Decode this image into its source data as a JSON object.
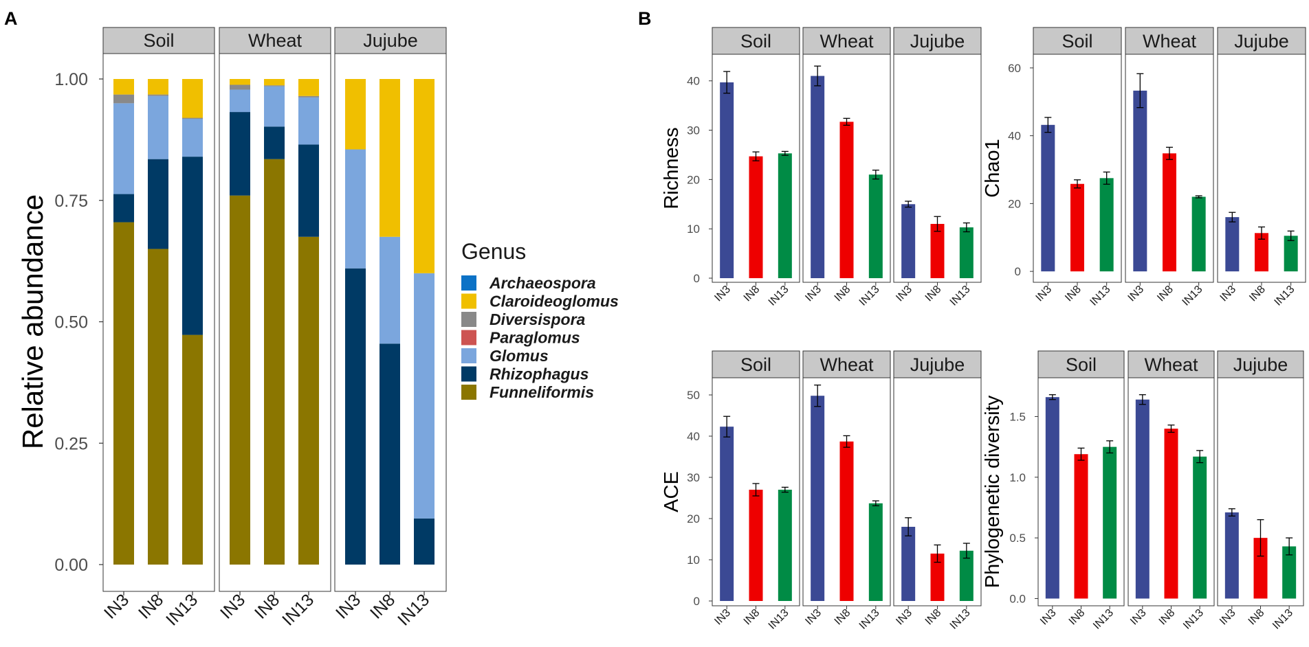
{
  "panel_labels": [
    "A",
    "B"
  ],
  "colors": {
    "Archaeospora": "#0c72c6",
    "Claroideoglomus": "#f0bf00",
    "Diversispora": "#898989",
    "Paraglomus": "#cd5452",
    "Glomus": "#7ba6dd",
    "Rhizophagus": "#003a65",
    "Funneliformis": "#8b7600",
    "IN3": "#3b4994",
    "IN8": "#ee0000",
    "IN13": "#008b45",
    "strip_fill": "#c8c8c8"
  },
  "chart_data": [
    {
      "id": "A",
      "type": "bar",
      "stacked": true,
      "ylabel": "Relative abundance",
      "ylim": [
        0,
        1
      ],
      "yticks": [
        "0.00",
        "0.25",
        "0.50",
        "0.75",
        "1.00"
      ],
      "facets": [
        "Soil",
        "Wheat",
        "Jujube"
      ],
      "categories": [
        "IN3",
        "IN8",
        "IN13"
      ],
      "legend_title": "Genus",
      "legend": [
        "Archaeospora",
        "Claroideoglomus",
        "Diversispora",
        "Paraglomus",
        "Glomus",
        "Rhizophagus",
        "Funneliformis"
      ],
      "stack_order": [
        "Funneliformis",
        "Rhizophagus",
        "Glomus",
        "Paraglomus",
        "Diversispora",
        "Claroideoglomus",
        "Archaeospora"
      ],
      "values": {
        "Soil": {
          "IN3": {
            "Funneliformis": 0.705,
            "Rhizophagus": 0.058,
            "Glomus": 0.187,
            "Paraglomus": 0.0,
            "Diversispora": 0.018,
            "Claroideoglomus": 0.032,
            "Archaeospora": 0.0
          },
          "IN8": {
            "Funneliformis": 0.65,
            "Rhizophagus": 0.185,
            "Glomus": 0.13,
            "Paraglomus": 0.0,
            "Diversispora": 0.003,
            "Claroideoglomus": 0.032,
            "Archaeospora": 0.0
          },
          "IN13": {
            "Funneliformis": 0.473,
            "Rhizophagus": 0.367,
            "Glomus": 0.078,
            "Paraglomus": 0.0,
            "Diversispora": 0.002,
            "Claroideoglomus": 0.08,
            "Archaeospora": 0.0
          }
        },
        "Wheat": {
          "IN3": {
            "Funneliformis": 0.76,
            "Rhizophagus": 0.172,
            "Glomus": 0.046,
            "Paraglomus": 0.0,
            "Diversispora": 0.01,
            "Claroideoglomus": 0.012,
            "Archaeospora": 0.0
          },
          "IN8": {
            "Funneliformis": 0.835,
            "Rhizophagus": 0.067,
            "Glomus": 0.083,
            "Paraglomus": 0.0,
            "Diversispora": 0.002,
            "Claroideoglomus": 0.013,
            "Archaeospora": 0.0
          },
          "IN13": {
            "Funneliformis": 0.675,
            "Rhizophagus": 0.19,
            "Glomus": 0.097,
            "Paraglomus": 0.0,
            "Diversispora": 0.003,
            "Claroideoglomus": 0.035,
            "Archaeospora": 0.0
          }
        },
        "Jujube": {
          "IN3": {
            "Funneliformis": 0.0,
            "Rhizophagus": 0.61,
            "Glomus": 0.245,
            "Paraglomus": 0.0,
            "Diversispora": 0.0,
            "Claroideoglomus": 0.145,
            "Archaeospora": 0.0
          },
          "IN8": {
            "Funneliformis": 0.0,
            "Rhizophagus": 0.455,
            "Glomus": 0.22,
            "Paraglomus": 0.0,
            "Diversispora": 0.0,
            "Claroideoglomus": 0.325,
            "Archaeospora": 0.0
          },
          "IN13": {
            "Funneliformis": 0.0,
            "Rhizophagus": 0.095,
            "Glomus": 0.505,
            "Paraglomus": 0.0,
            "Diversispora": 0.0,
            "Claroideoglomus": 0.4,
            "Archaeospora": 0.0
          }
        }
      }
    },
    {
      "id": "B-richness",
      "type": "bar",
      "ylabel": "Richness",
      "ylim": [
        0,
        44
      ],
      "yticks": [
        0,
        10,
        20,
        30,
        40
      ],
      "facets": [
        "Soil",
        "Wheat",
        "Jujube"
      ],
      "categories": [
        "IN3",
        "IN8",
        "IN13"
      ],
      "values": {
        "Soil": [
          39.7,
          24.7,
          25.3
        ],
        "Wheat": [
          41.0,
          31.7,
          21.0
        ],
        "Jujube": [
          15.0,
          11.0,
          10.3
        ]
      },
      "errors": {
        "Soil": [
          2.2,
          0.9,
          0.4
        ],
        "Wheat": [
          2.0,
          0.7,
          0.9
        ],
        "Jujube": [
          0.6,
          1.5,
          0.9
        ]
      }
    },
    {
      "id": "B-chao1",
      "type": "bar",
      "ylabel": "Chao1",
      "ylim": [
        -2,
        62
      ],
      "yticks": [
        0,
        20,
        40,
        60
      ],
      "facets": [
        "Soil",
        "Wheat",
        "Jujube"
      ],
      "categories": [
        "IN3",
        "IN8",
        "IN13"
      ],
      "values": {
        "Soil": [
          43.2,
          25.8,
          27.5
        ],
        "Wheat": [
          53.3,
          34.8,
          22.0
        ],
        "Jujube": [
          16.0,
          11.3,
          10.5
        ]
      },
      "errors": {
        "Soil": [
          2.2,
          1.2,
          1.8
        ],
        "Wheat": [
          5.0,
          1.8,
          0.3
        ],
        "Jujube": [
          1.4,
          1.8,
          1.4
        ]
      }
    },
    {
      "id": "B-ace",
      "type": "bar",
      "ylabel": "ACE",
      "ylim": [
        0,
        53
      ],
      "yticks": [
        0,
        10,
        20,
        30,
        40,
        50
      ],
      "facets": [
        "Soil",
        "Wheat",
        "Jujube"
      ],
      "categories": [
        "IN3",
        "IN8",
        "IN13"
      ],
      "values": {
        "Soil": [
          42.3,
          27.0,
          27.0
        ],
        "Wheat": [
          49.8,
          38.7,
          23.7
        ],
        "Jujube": [
          18.0,
          11.5,
          12.2
        ]
      },
      "errors": {
        "Soil": [
          2.5,
          1.5,
          0.6
        ],
        "Wheat": [
          2.6,
          1.4,
          0.6
        ],
        "Jujube": [
          2.2,
          2.1,
          1.8
        ]
      }
    },
    {
      "id": "B-pd",
      "type": "bar",
      "ylabel": "Phylogenetic diversity",
      "ylim": [
        -0.02,
        1.78
      ],
      "yticks": [
        "0.0",
        "0.5",
        "1.0",
        "1.5"
      ],
      "facets": [
        "Soil",
        "Wheat",
        "Jujube"
      ],
      "categories": [
        "IN3",
        "IN8",
        "IN13"
      ],
      "values": {
        "Soil": [
          1.66,
          1.19,
          1.25
        ],
        "Wheat": [
          1.64,
          1.4,
          1.17
        ],
        "Jujube": [
          0.71,
          0.5,
          0.43
        ]
      },
      "errors": {
        "Soil": [
          0.02,
          0.05,
          0.05
        ],
        "Wheat": [
          0.04,
          0.03,
          0.05
        ],
        "Jujube": [
          0.03,
          0.15,
          0.07
        ]
      }
    }
  ]
}
